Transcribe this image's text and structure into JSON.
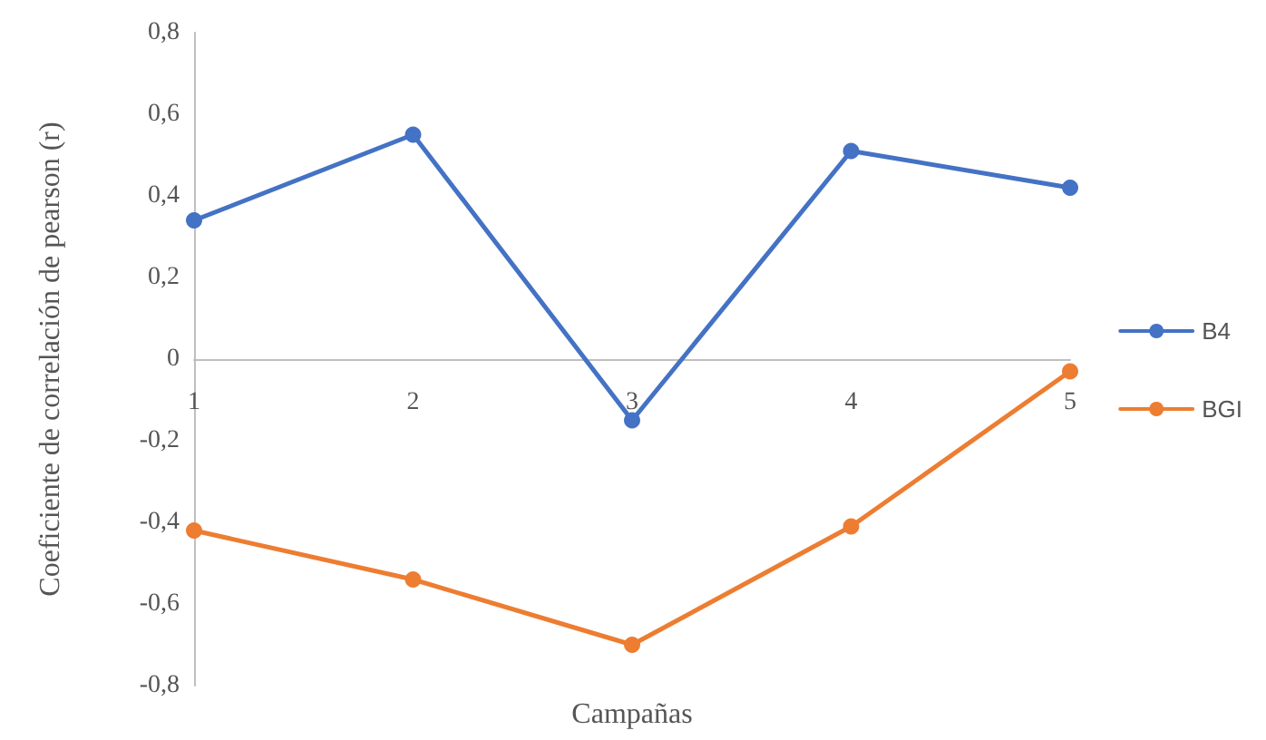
{
  "chart_data": {
    "type": "line",
    "xlabel": "Campañas",
    "ylabel": "Coeficiente de correlación de pearson (r)",
    "categories": [
      "1",
      "2",
      "3",
      "4",
      "5"
    ],
    "series": [
      {
        "name": "B4",
        "color": "#4472c4",
        "values": [
          0.34,
          0.55,
          -0.15,
          0.51,
          0.42
        ]
      },
      {
        "name": "BGI",
        "color": "#ed7d31",
        "values": [
          -0.42,
          -0.54,
          -0.7,
          -0.41,
          -0.03
        ]
      }
    ],
    "ylim": [
      -0.8,
      0.8
    ],
    "yticks": [
      {
        "value": -0.8,
        "label": "-0,8"
      },
      {
        "value": -0.6,
        "label": "-0,6"
      },
      {
        "value": -0.4,
        "label": "-0,4"
      },
      {
        "value": -0.2,
        "label": "-0,2"
      },
      0,
      {
        "value": 0.2,
        "label": "0,2"
      },
      {
        "value": 0.4,
        "label": "0,4"
      },
      {
        "value": 0.6,
        "label": "0,6"
      },
      {
        "value": 0.8,
        "label": "0,8"
      }
    ],
    "grid": false,
    "legend": "right",
    "marker": "circle",
    "line_style": "solid"
  }
}
